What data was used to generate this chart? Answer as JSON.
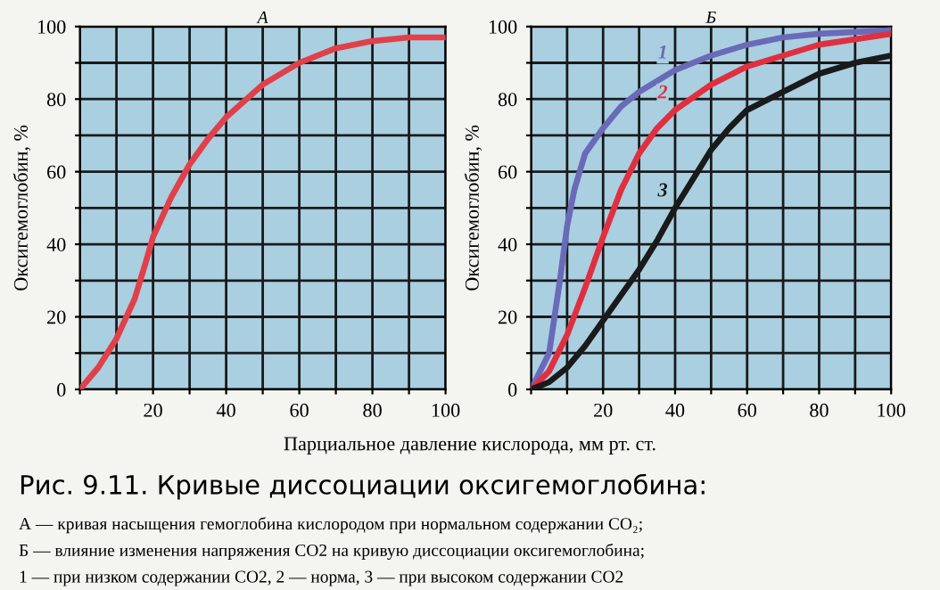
{
  "chart_data": [
    {
      "type": "line",
      "title": "А",
      "xlabel": "Парциальное давление кислорода, мм рт. ст.",
      "ylabel": "Оксигемоглобин, %",
      "x": [
        0,
        5,
        10,
        15,
        18,
        20,
        25,
        30,
        35,
        40,
        50,
        60,
        70,
        80,
        90,
        100
      ],
      "series": [
        {
          "color": "#e0404a",
          "values": [
            0,
            6,
            14,
            25,
            35,
            42,
            53,
            62,
            69,
            75,
            84,
            90,
            94,
            96,
            97,
            97
          ]
        }
      ],
      "xlim": [
        0,
        100
      ],
      "ylim": [
        0,
        100
      ],
      "xticks": [
        {
          "value": 0,
          "label": null
        },
        {
          "value": 10,
          "label": null
        },
        20,
        {
          "value": 30,
          "label": null
        },
        40,
        {
          "value": 50,
          "label": null
        },
        60,
        {
          "value": 70,
          "label": null
        },
        80,
        {
          "value": 90,
          "label": null
        },
        100
      ],
      "yticks": [
        0,
        {
          "value": 10,
          "label": null
        },
        20,
        {
          "value": 30,
          "label": null
        },
        40,
        {
          "value": 50,
          "label": null
        },
        60,
        {
          "value": 70,
          "label": null
        },
        80,
        {
          "value": 90,
          "label": null
        },
        100
      ],
      "grid": true,
      "legend": false,
      "marker": "none",
      "line_style": "solid",
      "annotations": [
        "Рис. 9.11. Кривые диссоциации оксигемоглобина:",
        "А — кривая насыщения гемоглобина кислородом при нормальном содержании CO₂;",
        "Б — влияние изменения напряжения CO2 на кривую диссоциации оксигемоглобина;",
        "1 — при низком содержании CO2, 2 — норма, 3 — при высоком содержании CO2"
      ]
    },
    {
      "type": "line",
      "title": "Б",
      "ylabel": "Оксигемоглобин, %",
      "series": [
        {
          "name": "1",
          "color": "#6a6ab8",
          "x": [
            0,
            5,
            8,
            10,
            12,
            15,
            20,
            25,
            30,
            40,
            50,
            60,
            70,
            80,
            100
          ],
          "values": [
            0,
            10,
            30,
            45,
            55,
            65,
            72,
            78,
            82,
            88,
            92,
            95,
            97,
            98,
            99
          ]
        },
        {
          "name": "2",
          "color": "#e03040",
          "x": [
            0,
            5,
            10,
            15,
            20,
            25,
            30,
            35,
            40,
            50,
            60,
            70,
            80,
            100
          ],
          "values": [
            0,
            5,
            15,
            28,
            42,
            55,
            65,
            72,
            77,
            84,
            89,
            92,
            95,
            98
          ]
        },
        {
          "name": "3",
          "color": "#1a1a1a",
          "x": [
            0,
            5,
            10,
            15,
            20,
            25,
            30,
            35,
            40,
            45,
            50,
            55,
            60,
            70,
            80,
            90,
            100
          ],
          "values": [
            0,
            2,
            6,
            12,
            19,
            26,
            33,
            41,
            50,
            58,
            66,
            72,
            77,
            82,
            87,
            90,
            92
          ]
        }
      ],
      "xlim": [
        0,
        100
      ],
      "ylim": [
        0,
        100
      ],
      "xticks": [
        {
          "value": 0,
          "label": null
        },
        {
          "value": 10,
          "label": null
        },
        20,
        {
          "value": 30,
          "label": null
        },
        40,
        {
          "value": 50,
          "label": null
        },
        60,
        {
          "value": 70,
          "label": null
        },
        80,
        {
          "value": 90,
          "label": null
        },
        100
      ],
      "yticks": [
        0,
        {
          "value": 10,
          "label": null
        },
        20,
        {
          "value": 30,
          "label": null
        },
        40,
        {
          "value": 50,
          "label": null
        },
        60,
        {
          "value": 70,
          "label": null
        },
        80,
        {
          "value": 90,
          "label": null
        },
        100
      ],
      "grid": true,
      "legend": false,
      "marker": "none",
      "line_style": "solid"
    }
  ]
}
